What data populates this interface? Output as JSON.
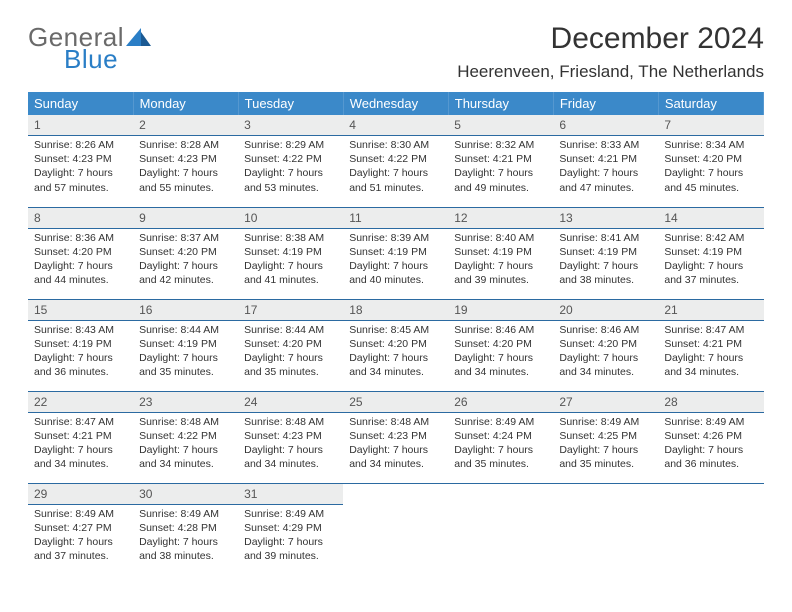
{
  "logo": {
    "word1": "General",
    "word2": "Blue"
  },
  "title": "December 2024",
  "location": "Heerenveen, Friesland, The Netherlands",
  "colors": {
    "header_bg": "#3b89c9",
    "header_text": "#ffffff",
    "daynum_bg": "#eceded",
    "rule": "#2b6aa1",
    "logo_gray": "#6a6a6a",
    "logo_blue": "#2a7ec6"
  },
  "weekdays": [
    "Sunday",
    "Monday",
    "Tuesday",
    "Wednesday",
    "Thursday",
    "Friday",
    "Saturday"
  ],
  "weeks": [
    [
      {
        "n": "1",
        "sr": "8:26 AM",
        "ss": "4:23 PM",
        "dl": "7 hours and 57 minutes."
      },
      {
        "n": "2",
        "sr": "8:28 AM",
        "ss": "4:23 PM",
        "dl": "7 hours and 55 minutes."
      },
      {
        "n": "3",
        "sr": "8:29 AM",
        "ss": "4:22 PM",
        "dl": "7 hours and 53 minutes."
      },
      {
        "n": "4",
        "sr": "8:30 AM",
        "ss": "4:22 PM",
        "dl": "7 hours and 51 minutes."
      },
      {
        "n": "5",
        "sr": "8:32 AM",
        "ss": "4:21 PM",
        "dl": "7 hours and 49 minutes."
      },
      {
        "n": "6",
        "sr": "8:33 AM",
        "ss": "4:21 PM",
        "dl": "7 hours and 47 minutes."
      },
      {
        "n": "7",
        "sr": "8:34 AM",
        "ss": "4:20 PM",
        "dl": "7 hours and 45 minutes."
      }
    ],
    [
      {
        "n": "8",
        "sr": "8:36 AM",
        "ss": "4:20 PM",
        "dl": "7 hours and 44 minutes."
      },
      {
        "n": "9",
        "sr": "8:37 AM",
        "ss": "4:20 PM",
        "dl": "7 hours and 42 minutes."
      },
      {
        "n": "10",
        "sr": "8:38 AM",
        "ss": "4:19 PM",
        "dl": "7 hours and 41 minutes."
      },
      {
        "n": "11",
        "sr": "8:39 AM",
        "ss": "4:19 PM",
        "dl": "7 hours and 40 minutes."
      },
      {
        "n": "12",
        "sr": "8:40 AM",
        "ss": "4:19 PM",
        "dl": "7 hours and 39 minutes."
      },
      {
        "n": "13",
        "sr": "8:41 AM",
        "ss": "4:19 PM",
        "dl": "7 hours and 38 minutes."
      },
      {
        "n": "14",
        "sr": "8:42 AM",
        "ss": "4:19 PM",
        "dl": "7 hours and 37 minutes."
      }
    ],
    [
      {
        "n": "15",
        "sr": "8:43 AM",
        "ss": "4:19 PM",
        "dl": "7 hours and 36 minutes."
      },
      {
        "n": "16",
        "sr": "8:44 AM",
        "ss": "4:19 PM",
        "dl": "7 hours and 35 minutes."
      },
      {
        "n": "17",
        "sr": "8:44 AM",
        "ss": "4:20 PM",
        "dl": "7 hours and 35 minutes."
      },
      {
        "n": "18",
        "sr": "8:45 AM",
        "ss": "4:20 PM",
        "dl": "7 hours and 34 minutes."
      },
      {
        "n": "19",
        "sr": "8:46 AM",
        "ss": "4:20 PM",
        "dl": "7 hours and 34 minutes."
      },
      {
        "n": "20",
        "sr": "8:46 AM",
        "ss": "4:20 PM",
        "dl": "7 hours and 34 minutes."
      },
      {
        "n": "21",
        "sr": "8:47 AM",
        "ss": "4:21 PM",
        "dl": "7 hours and 34 minutes."
      }
    ],
    [
      {
        "n": "22",
        "sr": "8:47 AM",
        "ss": "4:21 PM",
        "dl": "7 hours and 34 minutes."
      },
      {
        "n": "23",
        "sr": "8:48 AM",
        "ss": "4:22 PM",
        "dl": "7 hours and 34 minutes."
      },
      {
        "n": "24",
        "sr": "8:48 AM",
        "ss": "4:23 PM",
        "dl": "7 hours and 34 minutes."
      },
      {
        "n": "25",
        "sr": "8:48 AM",
        "ss": "4:23 PM",
        "dl": "7 hours and 34 minutes."
      },
      {
        "n": "26",
        "sr": "8:49 AM",
        "ss": "4:24 PM",
        "dl": "7 hours and 35 minutes."
      },
      {
        "n": "27",
        "sr": "8:49 AM",
        "ss": "4:25 PM",
        "dl": "7 hours and 35 minutes."
      },
      {
        "n": "28",
        "sr": "8:49 AM",
        "ss": "4:26 PM",
        "dl": "7 hours and 36 minutes."
      }
    ],
    [
      {
        "n": "29",
        "sr": "8:49 AM",
        "ss": "4:27 PM",
        "dl": "7 hours and 37 minutes."
      },
      {
        "n": "30",
        "sr": "8:49 AM",
        "ss": "4:28 PM",
        "dl": "7 hours and 38 minutes."
      },
      {
        "n": "31",
        "sr": "8:49 AM",
        "ss": "4:29 PM",
        "dl": "7 hours and 39 minutes."
      },
      null,
      null,
      null,
      null
    ]
  ],
  "labels": {
    "sunrise": "Sunrise: ",
    "sunset": "Sunset: ",
    "daylight": "Daylight: "
  }
}
